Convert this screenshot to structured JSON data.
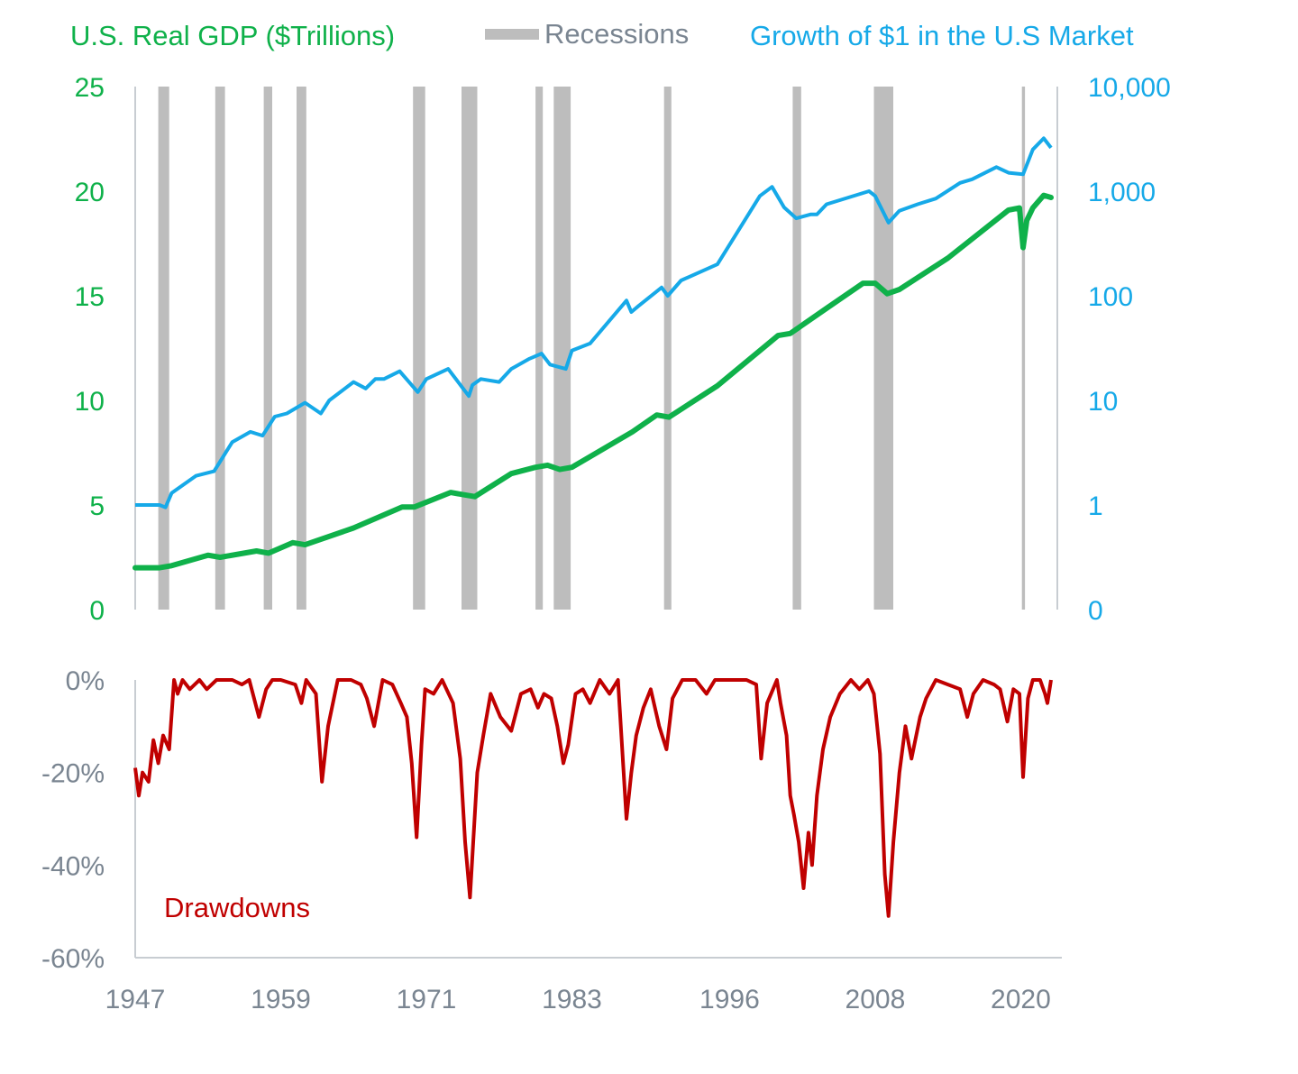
{
  "colors": {
    "gdp": "#0fb14a",
    "market": "#16a9e8",
    "recession": "#bdbdbd",
    "drawdown": "#c00000",
    "axis": "#c8cdd2",
    "tick_gray": "#7a8591"
  },
  "legend": {
    "gdp": "U.S. Real GDP ($Trillions)",
    "recessions": "Recessions",
    "market": "Growth of $1 in the U.S Market"
  },
  "x_ticks": [
    "1947",
    "1959",
    "1971",
    "1983",
    "1996",
    "2008",
    "2020"
  ],
  "gdp_ticks": [
    "0",
    "5",
    "10",
    "15",
    "20",
    "25"
  ],
  "market_ticks": [
    "0",
    "1",
    "10",
    "100",
    "1,000",
    "10,000"
  ],
  "drawdown_ticks": [
    "0%",
    "-20%",
    "-40%",
    "-60%"
  ],
  "drawdown_label": "Drawdowns",
  "chart_data": [
    {
      "type": "line",
      "title": "",
      "x_range": [
        1947,
        2022.5
      ],
      "recessions": [
        [
          1948.9,
          1949.8
        ],
        [
          1953.6,
          1954.4
        ],
        [
          1957.6,
          1958.3
        ],
        [
          1960.3,
          1961.1
        ],
        [
          1969.9,
          1970.9
        ],
        [
          1973.9,
          1975.2
        ],
        [
          1980.0,
          1980.6
        ],
        [
          1981.5,
          1982.9
        ],
        [
          1990.6,
          1991.2
        ],
        [
          2001.2,
          2001.9
        ],
        [
          2007.9,
          2009.5
        ],
        [
          2020.1,
          2020.35
        ]
      ],
      "series": [
        {
          "name": "U.S. Real GDP ($Trillions)",
          "axis": "left",
          "ylim": [
            0,
            25
          ],
          "x": [
            1947,
            1949,
            1950,
            1953,
            1954,
            1957,
            1958,
            1960,
            1961,
            1965,
            1969,
            1970,
            1973,
            1974,
            1975,
            1978,
            1980,
            1981,
            1982,
            1983,
            1988,
            1990,
            1991,
            1995,
            2000,
            2001,
            2004,
            2007,
            2008,
            2009,
            2010,
            2014,
            2019,
            2019.9,
            2020.2,
            2020.5,
            2021,
            2021.9,
            2022.5
          ],
          "values": [
            2.0,
            2.0,
            2.1,
            2.6,
            2.5,
            2.8,
            2.7,
            3.2,
            3.1,
            3.9,
            4.9,
            4.9,
            5.6,
            5.5,
            5.4,
            6.5,
            6.8,
            6.9,
            6.7,
            6.8,
            8.5,
            9.3,
            9.2,
            10.7,
            13.1,
            13.2,
            14.4,
            15.6,
            15.6,
            15.1,
            15.3,
            16.8,
            19.1,
            19.2,
            17.3,
            18.6,
            19.2,
            19.8,
            19.7
          ]
        },
        {
          "name": "Growth of $1 in the U.S Market",
          "axis": "right",
          "scale": "log",
          "ylim": [
            0.1,
            10000
          ],
          "x": [
            1947,
            1949,
            1949.5,
            1950,
            1952,
            1953.5,
            1955,
            1956.5,
            1957.5,
            1958.5,
            1959.5,
            1961,
            1962.3,
            1963,
            1965,
            1966,
            1966.8,
            1967.5,
            1968.8,
            1970.3,
            1971,
            1972.8,
            1974.5,
            1974.8,
            1975.5,
            1977,
            1978,
            1979.5,
            1980.5,
            1981.2,
            1982.5,
            1983,
            1984.5,
            1987.5,
            1987.9,
            1988.5,
            1990.4,
            1990.9,
            1992,
            1995,
            1998.5,
            1999.5,
            2000.5,
            2001.5,
            2002.7,
            2003.2,
            2004,
            2007.5,
            2008,
            2009.1,
            2010,
            2011.5,
            2013,
            2015,
            2016,
            2018,
            2019,
            2020.2,
            2021,
            2021.9,
            2022.5
          ],
          "values": [
            1.0,
            1.0,
            0.95,
            1.3,
            1.9,
            2.1,
            4.0,
            5.0,
            4.6,
            7.0,
            7.5,
            9.5,
            7.5,
            10,
            15,
            13,
            16,
            16,
            19,
            12,
            16,
            20,
            11,
            14,
            16,
            15,
            20,
            25,
            28,
            22,
            20,
            30,
            35,
            90,
            70,
            80,
            120,
            100,
            140,
            200,
            900,
            1100,
            700,
            550,
            600,
            600,
            750,
            1000,
            900,
            500,
            650,
            750,
            850,
            1200,
            1300,
            1700,
            1500,
            1450,
            2500,
            3200,
            2600
          ]
        }
      ]
    },
    {
      "type": "area",
      "title": "",
      "x_range": [
        1947,
        2022.5
      ],
      "ylim": [
        -60,
        0
      ],
      "series": [
        {
          "name": "Drawdowns",
          "x": [
            1947,
            1947.3,
            1947.6,
            1948.1,
            1948.5,
            1948.9,
            1949.3,
            1949.8,
            1950.2,
            1950.5,
            1950.9,
            1951.5,
            1952.3,
            1952.9,
            1953.7,
            1954.2,
            1955,
            1955.8,
            1956.4,
            1957.2,
            1957.8,
            1958.3,
            1959,
            1960.2,
            1960.7,
            1961.1,
            1961.9,
            1962.4,
            1962.9,
            1963.7,
            1964.8,
            1965.6,
            1966.1,
            1966.7,
            1967.4,
            1968.2,
            1968.9,
            1969.4,
            1969.8,
            1970.2,
            1970.6,
            1970.9,
            1971.6,
            1972.3,
            1973.2,
            1973.8,
            1974.2,
            1974.6,
            1974.8,
            1975.2,
            1975.7,
            1976.3,
            1977.1,
            1978.0,
            1978.8,
            1979.6,
            1980.2,
            1980.7,
            1981.3,
            1981.8,
            1982.3,
            1982.7,
            1983.3,
            1983.9,
            1984.5,
            1985.3,
            1986.1,
            1986.8,
            1987.5,
            1987.9,
            1988.3,
            1988.9,
            1989.5,
            1990.2,
            1990.8,
            1991.3,
            1992.1,
            1993.2,
            1994.1,
            1994.8,
            1995.5,
            1996.5,
            1997.4,
            1998.2,
            1998.6,
            1999.1,
            1999.9,
            2000.2,
            2000.7,
            2001.0,
            2001.3,
            2001.7,
            2002.1,
            2002.5,
            2002.8,
            2003.2,
            2003.7,
            2004.3,
            2005.1,
            2006.0,
            2006.7,
            2007.4,
            2007.9,
            2008.4,
            2008.8,
            2009.1,
            2009.5,
            2010.0,
            2010.5,
            2011.0,
            2011.7,
            2012.2,
            2013.0,
            2014.0,
            2015.0,
            2015.6,
            2016.1,
            2016.9,
            2017.8,
            2018.3,
            2018.9,
            2019.4,
            2019.9,
            2020.2,
            2020.6,
            2021.0,
            2021.6,
            2022.0,
            2022.2,
            2022.5
          ],
          "values": [
            -19,
            -25,
            -20,
            -22,
            -13,
            -18,
            -12,
            -15,
            0,
            -3,
            0,
            -2,
            0,
            -2,
            0,
            0,
            0,
            -1,
            0,
            -8,
            -2,
            0,
            0,
            -1,
            -5,
            0,
            -3,
            -22,
            -10,
            0,
            0,
            -1,
            -4,
            -10,
            0,
            -1,
            -5,
            -8,
            -18,
            -34,
            -14,
            -2,
            -3,
            0,
            -5,
            -17,
            -35,
            -47,
            -38,
            -20,
            -12,
            -3,
            -8,
            -11,
            -3,
            -2,
            -6,
            -3,
            -4,
            -10,
            -18,
            -14,
            -3,
            -2,
            -5,
            0,
            -3,
            0,
            -30,
            -20,
            -12,
            -6,
            -2,
            -10,
            -15,
            -4,
            0,
            0,
            -3,
            0,
            0,
            0,
            0,
            -1,
            -17,
            -5,
            0,
            -5,
            -12,
            -25,
            -29,
            -35,
            -45,
            -33,
            -40,
            -25,
            -15,
            -8,
            -3,
            0,
            -2,
            0,
            -3,
            -16,
            -42,
            -51,
            -35,
            -20,
            -10,
            -17,
            -8,
            -4,
            0,
            -1,
            -2,
            -8,
            -3,
            0,
            -1,
            -2,
            -9,
            -2,
            -3,
            -21,
            -4,
            0,
            0,
            -3,
            -5,
            0
          ]
        }
      ]
    }
  ]
}
